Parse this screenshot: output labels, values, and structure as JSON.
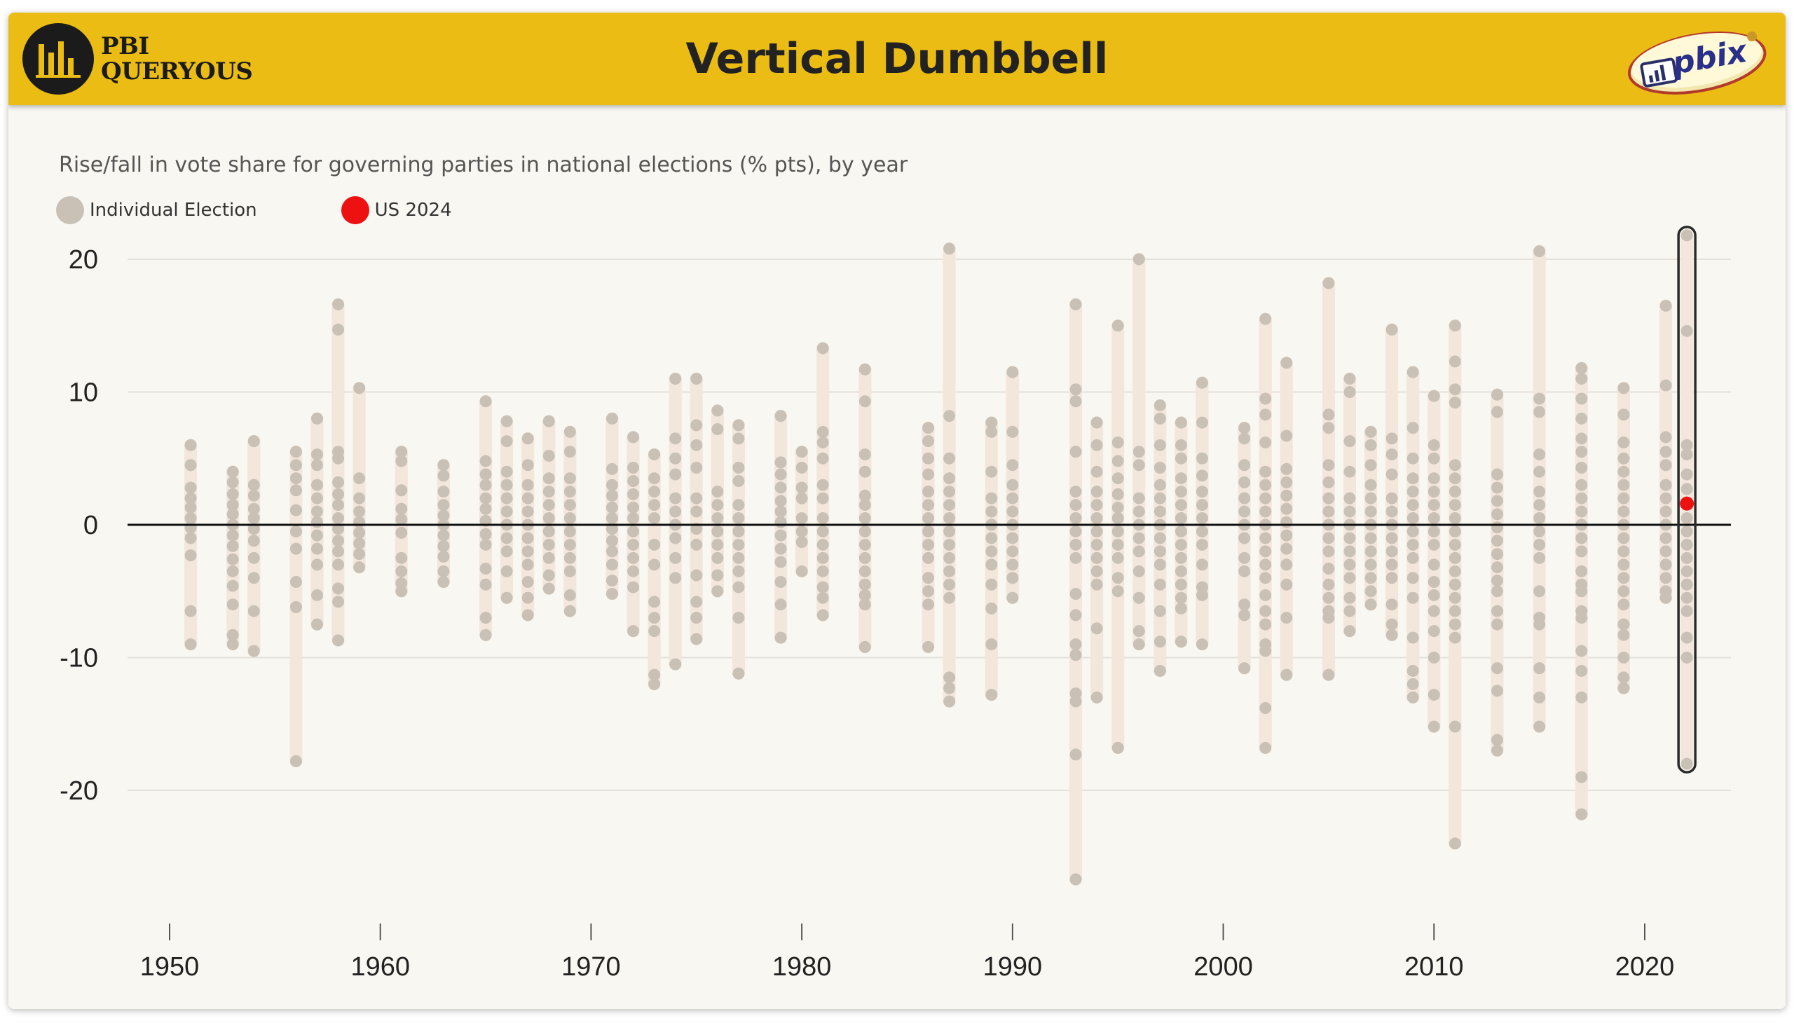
{
  "header": {
    "title": "Vertical Dumbbell",
    "logo_line1": "PBI",
    "logo_line2": "QUERYOUS",
    "badge_text": "pbix"
  },
  "colors": {
    "header_bg": "#ebbd14",
    "point": "#c9c1b6",
    "bar": "#f3e6da",
    "highlight": "#ee1111",
    "highlight_box": "#2a2a2a"
  },
  "chart_data": {
    "type": "scatter",
    "title": "",
    "subtitle": "Rise/fall in vote share for governing parties in national elections (% pts), by year",
    "xlabel": "",
    "ylabel": "",
    "xlim": [
      1945,
      2023
    ],
    "ylim": [
      -30,
      25
    ],
    "x_ticks": [
      1950,
      1960,
      1970,
      1980,
      1990,
      2000,
      2010,
      2020
    ],
    "y_ticks": [
      20,
      10,
      0,
      -10,
      -20
    ],
    "grid": true,
    "legend": "top-left",
    "legend_items": [
      {
        "label": "Individual Election",
        "color": "#c9c1b6"
      },
      {
        "label": "US 2024",
        "color": "#ee1111"
      }
    ],
    "highlight": {
      "name": "US 2024",
      "x": 2022,
      "y": 1.6
    },
    "series": [
      {
        "year": 1951,
        "min": -9,
        "max": 6,
        "values": [
          6,
          4.5,
          2.8,
          2,
          1.3,
          0.5,
          -0.2,
          -1,
          -2.3,
          -6.5,
          -9
        ]
      },
      {
        "year": 1953,
        "min": -9,
        "max": 4,
        "values": [
          4,
          3.2,
          2.3,
          1.5,
          0.8,
          0,
          -0.8,
          -1.6,
          -2.6,
          -3.5,
          -4.6,
          -6,
          -8.3,
          -9
        ]
      },
      {
        "year": 1954,
        "min": -9.5,
        "max": 6.3,
        "values": [
          6.3,
          3,
          2.2,
          1.2,
          0.5,
          -0.3,
          -1.2,
          -2.5,
          -4,
          -6.5,
          -9.5
        ]
      },
      {
        "year": 1956,
        "min": -17.8,
        "max": 5.5,
        "values": [
          5.5,
          4.5,
          3.5,
          2.6,
          1.1,
          -0.5,
          -1.8,
          -4.3,
          -6.2,
          -17.8
        ]
      },
      {
        "year": 1957,
        "min": -7.5,
        "max": 8,
        "values": [
          8,
          5.3,
          4.5,
          3,
          2,
          1,
          0.2,
          -0.8,
          -1.8,
          -3,
          -5.3,
          -7.5
        ]
      },
      {
        "year": 1958,
        "min": -8.7,
        "max": 16.6,
        "values": [
          16.6,
          14.7,
          5.5,
          5,
          3.2,
          2.3,
          1.5,
          0.5,
          -0.3,
          -1.2,
          -2,
          -3,
          -4.8,
          -5.8,
          -8.7
        ]
      },
      {
        "year": 1959,
        "min": -3.2,
        "max": 10.3,
        "values": [
          10.3,
          3.5,
          2,
          1,
          0.2,
          -0.6,
          -1.4,
          -2.2,
          -3.2
        ]
      },
      {
        "year": 1961,
        "min": -5,
        "max": 5.5,
        "values": [
          5.5,
          4.8,
          2.6,
          1.2,
          0.4,
          -0.6,
          -2.5,
          -3.5,
          -4.4,
          -5
        ]
      },
      {
        "year": 1963,
        "min": -4.3,
        "max": 4.5,
        "values": [
          4.5,
          3.7,
          2.5,
          1.5,
          0.7,
          0,
          -0.8,
          -1.6,
          -2.4,
          -3.5,
          -4.3
        ]
      },
      {
        "year": 1965,
        "min": -8.3,
        "max": 9.3,
        "values": [
          9.3,
          4.8,
          3.8,
          3,
          2,
          1.2,
          0.3,
          -0.7,
          -1.5,
          -3.3,
          -4.5,
          -7,
          -8.3
        ]
      },
      {
        "year": 1966,
        "min": -5.5,
        "max": 7.8,
        "values": [
          7.8,
          6.3,
          4,
          3,
          2,
          1,
          0,
          -1,
          -2,
          -3.5,
          -5.5
        ]
      },
      {
        "year": 1967,
        "min": -6.8,
        "max": 6.5,
        "values": [
          6.5,
          4.5,
          3,
          2,
          1,
          0,
          -1,
          -2,
          -3,
          -4.3,
          -5.5,
          -6.8
        ]
      },
      {
        "year": 1968,
        "min": -4.8,
        "max": 7.8,
        "values": [
          7.8,
          5.2,
          3.5,
          2.5,
          1.5,
          0.5,
          -0.5,
          -1.5,
          -2.5,
          -3.8,
          -4.8
        ]
      },
      {
        "year": 1969,
        "min": -6.5,
        "max": 7,
        "values": [
          7,
          5.5,
          3.5,
          2.5,
          1.5,
          0.5,
          -0.5,
          -1.5,
          -2.5,
          -3.5,
          -5.3,
          -6.5
        ]
      },
      {
        "year": 1971,
        "min": -5.2,
        "max": 8,
        "values": [
          8,
          4.2,
          3,
          2.2,
          1.3,
          0.5,
          -0.3,
          -1.2,
          -2,
          -3,
          -4.2,
          -5.2
        ]
      },
      {
        "year": 1972,
        "min": -8,
        "max": 6.6,
        "values": [
          6.6,
          4.3,
          3.3,
          2.3,
          1.3,
          0.5,
          -0.5,
          -1.5,
          -2.5,
          -3.5,
          -4.7,
          -8
        ]
      },
      {
        "year": 1973,
        "min": -12,
        "max": 5.3,
        "values": [
          5.3,
          3.5,
          2.5,
          1.5,
          0.5,
          -1.5,
          -3,
          -5.8,
          -7,
          -8,
          -11.3,
          -12
        ]
      },
      {
        "year": 1974,
        "min": -10.5,
        "max": 11,
        "values": [
          11,
          6.5,
          5,
          3.8,
          2,
          1,
          0,
          -1,
          -2.5,
          -4,
          -10.5
        ]
      },
      {
        "year": 1975,
        "min": -8.6,
        "max": 11,
        "values": [
          11,
          7.5,
          6,
          4.3,
          2,
          1,
          -0.3,
          -1.5,
          -3.8,
          -5.8,
          -7,
          -8.6
        ]
      },
      {
        "year": 1976,
        "min": -5,
        "max": 8.6,
        "values": [
          8.6,
          7.2,
          2.5,
          1.5,
          0.5,
          -0.5,
          -1.5,
          -2.5,
          -3.8,
          -5
        ]
      },
      {
        "year": 1977,
        "min": -11.2,
        "max": 7.5,
        "values": [
          7.5,
          6.5,
          4.3,
          3.3,
          1.5,
          0.5,
          -0.5,
          -1.5,
          -2.5,
          -3.5,
          -4.7,
          -7,
          -11.2
        ]
      },
      {
        "year": 1979,
        "min": -8.5,
        "max": 8.2,
        "values": [
          8.2,
          4.7,
          3.8,
          2.8,
          1.8,
          1,
          0.2,
          -0.8,
          -1.8,
          -2.8,
          -4.3,
          -6,
          -8.5
        ]
      },
      {
        "year": 1980,
        "min": -3.5,
        "max": 5.5,
        "values": [
          5.5,
          4.3,
          2.8,
          2,
          0.5,
          -0.5,
          -1.3,
          -3.5
        ]
      },
      {
        "year": 1981,
        "min": -6.8,
        "max": 13.3,
        "values": [
          13.3,
          7,
          6.2,
          5,
          3,
          2,
          0.5,
          -0.5,
          -1.5,
          -2.5,
          -3.5,
          -4.7,
          -5.5,
          -6.8
        ]
      },
      {
        "year": 1983,
        "min": -9.2,
        "max": 11.7,
        "values": [
          11.7,
          9.3,
          5.3,
          4,
          2.2,
          1.5,
          0.5,
          -0.5,
          -1.5,
          -2.5,
          -3.5,
          -4.5,
          -5.3,
          -6,
          -9.2
        ]
      },
      {
        "year": 1986,
        "min": -9.2,
        "max": 7.3,
        "values": [
          7.3,
          6.3,
          5,
          3.8,
          2.5,
          1.5,
          0.5,
          -0.5,
          -1.5,
          -2.5,
          -4,
          -5,
          -6,
          -9.2
        ]
      },
      {
        "year": 1987,
        "min": -13.3,
        "max": 20.8,
        "values": [
          20.8,
          8.2,
          5,
          3.5,
          2.5,
          1.5,
          0.5,
          -0.5,
          -1.5,
          -2.5,
          -3.5,
          -4.5,
          -5.5,
          -11.5,
          -12.3,
          -13.3
        ]
      },
      {
        "year": 1989,
        "min": -12.8,
        "max": 7.7,
        "values": [
          7.7,
          7,
          4,
          2,
          1,
          0,
          -1,
          -2,
          -3,
          -4.5,
          -6.3,
          -9,
          -12.8
        ]
      },
      {
        "year": 1990,
        "min": -5.5,
        "max": 11.5,
        "values": [
          11.5,
          7,
          4.5,
          3,
          2,
          1,
          0,
          -1,
          -2,
          -3,
          -4,
          -5.5
        ]
      },
      {
        "year": 1993,
        "min": -26.7,
        "max": 16.6,
        "values": [
          16.6,
          10.2,
          9.3,
          5.5,
          2.5,
          1.5,
          0.5,
          -0.5,
          -1.5,
          -2.5,
          -5.2,
          -6.8,
          -9,
          -9.8,
          -12.7,
          -13.3,
          -17.3,
          -26.7
        ]
      },
      {
        "year": 1994,
        "min": -13,
        "max": 7.7,
        "values": [
          7.7,
          6,
          4,
          2.5,
          1.5,
          0.5,
          -0.5,
          -1.5,
          -2.5,
          -3.5,
          -4.5,
          -7.8,
          -13
        ]
      },
      {
        "year": 1995,
        "min": -16.8,
        "max": 15,
        "values": [
          15,
          6.2,
          4.8,
          3.5,
          2.3,
          1.3,
          0.5,
          -0.5,
          -1.5,
          -2.5,
          -4,
          -5,
          -16.8
        ]
      },
      {
        "year": 1996,
        "min": -9,
        "max": 20,
        "values": [
          20,
          5.5,
          4.5,
          2,
          1,
          0,
          -1,
          -2,
          -3.5,
          -5.5,
          -8,
          -9
        ]
      },
      {
        "year": 1997,
        "min": -11,
        "max": 9,
        "values": [
          9,
          8,
          6,
          4.3,
          3,
          2,
          1,
          0,
          -1,
          -2,
          -3,
          -4.5,
          -6.5,
          -8.8,
          -11
        ]
      },
      {
        "year": 1998,
        "min": -8.8,
        "max": 7.7,
        "values": [
          7.7,
          6,
          5,
          3.5,
          2.5,
          1.5,
          0.5,
          -0.5,
          -1.5,
          -2.5,
          -3.5,
          -4.5,
          -5.5,
          -6.3,
          -8.8
        ]
      },
      {
        "year": 1999,
        "min": -9,
        "max": 10.7,
        "values": [
          10.7,
          7.7,
          5,
          3.7,
          2.5,
          1.5,
          0.5,
          -0.5,
          -1.5,
          -3,
          -4.7,
          -5.3,
          -9
        ]
      },
      {
        "year": 2001,
        "min": -10.8,
        "max": 7.3,
        "values": [
          7.3,
          6.5,
          4.5,
          3.2,
          2,
          1,
          0,
          -1,
          -2.5,
          -3.5,
          -6,
          -6.8,
          -10.8
        ]
      },
      {
        "year": 2002,
        "min": -16.8,
        "max": 15.5,
        "values": [
          15.5,
          9.5,
          8.3,
          6.2,
          4,
          3,
          2,
          1,
          0,
          -1,
          -2,
          -3,
          -4,
          -5.3,
          -6.5,
          -7.5,
          -9,
          -9.5,
          -13.8,
          -16.8
        ]
      },
      {
        "year": 2003,
        "min": -11.3,
        "max": 12.2,
        "values": [
          12.2,
          6.7,
          4.2,
          3.2,
          2.2,
          1.2,
          0.2,
          -0.8,
          -1.8,
          -3,
          -4.5,
          -7,
          -11.3
        ]
      },
      {
        "year": 2005,
        "min": -11.3,
        "max": 18.2,
        "values": [
          18.2,
          8.3,
          7.3,
          4.5,
          3.2,
          2,
          1,
          0,
          -1,
          -2,
          -3.3,
          -4.5,
          -5.5,
          -6.5,
          -7,
          -11.3
        ]
      },
      {
        "year": 2006,
        "min": -8,
        "max": 11,
        "values": [
          11,
          10,
          6.3,
          4,
          2,
          1,
          0,
          -1,
          -2,
          -3,
          -4,
          -5.5,
          -6.5,
          -8
        ]
      },
      {
        "year": 2007,
        "min": -6,
        "max": 7,
        "values": [
          7,
          6,
          4.5,
          3,
          2,
          1,
          0,
          -1,
          -2,
          -3,
          -4,
          -5,
          -6
        ]
      },
      {
        "year": 2008,
        "min": -8.3,
        "max": 14.7,
        "values": [
          14.7,
          6.5,
          5.3,
          3.8,
          2,
          1,
          0,
          -1,
          -2,
          -3,
          -4,
          -6,
          -7.5,
          -8.3
        ]
      },
      {
        "year": 2009,
        "min": -13,
        "max": 11.5,
        "values": [
          11.5,
          7.3,
          5,
          3.5,
          2.5,
          1.5,
          0.5,
          -0.5,
          -1.5,
          -2.5,
          -4,
          -5.5,
          -8.5,
          -11,
          -12,
          -13
        ]
      },
      {
        "year": 2010,
        "min": -15.2,
        "max": 9.7,
        "values": [
          9.7,
          6,
          5,
          3.5,
          2.5,
          1.5,
          0.5,
          -0.5,
          -1.5,
          -3,
          -4.3,
          -5.3,
          -6.5,
          -8,
          -10,
          -12.8,
          -15.2
        ]
      },
      {
        "year": 2011,
        "min": -24,
        "max": 15,
        "values": [
          15,
          12.3,
          10.2,
          9.2,
          4.5,
          3.5,
          2.5,
          1.5,
          0.5,
          -0.5,
          -1.5,
          -2.5,
          -3.5,
          -4.5,
          -5.5,
          -6.5,
          -7.5,
          -8.5,
          -15.2,
          -24
        ]
      },
      {
        "year": 2013,
        "min": -17,
        "max": 9.8,
        "values": [
          9.8,
          8.5,
          3.8,
          2.8,
          1.8,
          0.8,
          -0.2,
          -1.2,
          -2.2,
          -3.2,
          -4.2,
          -5,
          -6.5,
          -7.5,
          -10.8,
          -12.5,
          -16.2,
          -17
        ]
      },
      {
        "year": 2015,
        "min": -15.2,
        "max": 20.6,
        "values": [
          20.6,
          9.5,
          8.5,
          5.3,
          4,
          2.5,
          1.5,
          0.5,
          -0.5,
          -1.5,
          -2.5,
          -5,
          -7,
          -7.5,
          -10.8,
          -13,
          -15.2
        ]
      },
      {
        "year": 2017,
        "min": -21.8,
        "max": 11.8,
        "values": [
          11.8,
          11,
          9.5,
          8,
          6.5,
          5.5,
          4.3,
          3,
          2,
          1,
          0,
          -1,
          -2,
          -3.5,
          -4.5,
          -5,
          -6.5,
          -7,
          -9.5,
          -11,
          -13,
          -19,
          -21.8
        ]
      },
      {
        "year": 2019,
        "min": -12.3,
        "max": 10.3,
        "values": [
          10.3,
          8.3,
          6.2,
          5,
          4,
          3,
          2,
          1,
          0,
          -1,
          -2,
          -3,
          -4,
          -5,
          -6,
          -7.5,
          -8.3,
          -10,
          -11.5,
          -12.3
        ]
      },
      {
        "year": 2021,
        "min": -5.5,
        "max": 16.5,
        "values": [
          16.5,
          10.5,
          6.6,
          5.5,
          4.5,
          3,
          2,
          1,
          0,
          -1,
          -2,
          -3,
          -4,
          -5,
          -5.5
        ]
      },
      {
        "year": 2022,
        "min": -18,
        "max": 21.8,
        "values": [
          21.8,
          14.6,
          6,
          5.3,
          3.8,
          2.7,
          1.6,
          0.5,
          -0.5,
          -1.5,
          -2.5,
          -3.5,
          -4.5,
          -5.5,
          -6.5,
          -8.5,
          -10,
          -18
        ]
      }
    ]
  }
}
